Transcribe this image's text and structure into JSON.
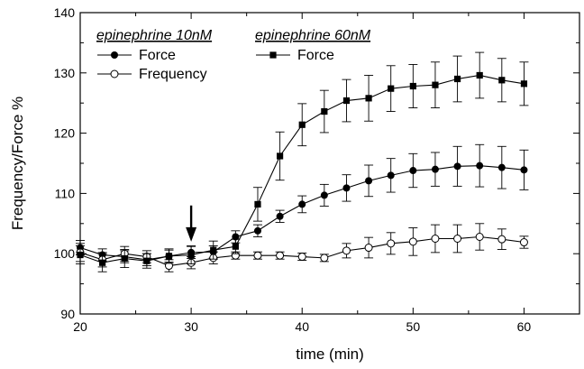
{
  "chart_data": {
    "type": "line",
    "xlabel": "time (min)",
    "ylabel": "Frequency/Force %",
    "xlim": [
      20,
      65
    ],
    "ylim": [
      90,
      140
    ],
    "xticks": [
      20,
      30,
      40,
      50,
      60
    ],
    "yticks": [
      90,
      100,
      110,
      120,
      130,
      140
    ],
    "grid": false,
    "legend_position": "top-left",
    "legend_groups": [
      {
        "heading": "epinephrine 10nM",
        "entries": [
          "Force",
          "Frequency"
        ]
      },
      {
        "heading": "epinephrine 60nM",
        "entries": [
          "Force"
        ]
      }
    ],
    "annotation": {
      "type": "arrow",
      "x": 30,
      "y_from": 108,
      "y_to": 102
    },
    "series": [
      {
        "name": "Force",
        "group": "epinephrine 10nM",
        "marker": "filled-circle",
        "x": [
          20,
          22,
          24,
          26,
          28,
          30,
          32,
          34,
          36,
          38,
          40,
          42,
          44,
          46,
          48,
          50,
          52,
          54,
          56,
          58,
          60
        ],
        "y": [
          101.0,
          99.8,
          99.5,
          99.0,
          99.6,
          100.2,
          100.3,
          102.8,
          103.8,
          106.2,
          108.2,
          109.7,
          110.9,
          112.1,
          113.0,
          113.8,
          114.0,
          114.5,
          114.6,
          114.3,
          113.9
        ],
        "err": [
          1.2,
          1.0,
          1.0,
          1.0,
          1.0,
          1.0,
          1.0,
          1.0,
          1.0,
          1.0,
          1.4,
          1.8,
          2.2,
          2.6,
          2.8,
          2.8,
          2.8,
          3.3,
          3.5,
          3.5,
          3.3
        ]
      },
      {
        "name": "Frequency",
        "group": "epinephrine 10nM",
        "marker": "open-circle",
        "x": [
          20,
          22,
          24,
          26,
          28,
          30,
          32,
          34,
          36,
          38,
          40,
          42,
          44,
          46,
          48,
          50,
          52,
          54,
          56,
          58,
          60
        ],
        "y": [
          100.2,
          99.0,
          100.0,
          99.5,
          98.0,
          98.5,
          99.3,
          99.7,
          99.7,
          99.7,
          99.5,
          99.3,
          100.5,
          101.0,
          101.7,
          102.0,
          102.5,
          102.5,
          102.8,
          102.4,
          101.9
        ],
        "err": [
          1.5,
          1.2,
          1.2,
          1.0,
          1.0,
          1.0,
          1.0,
          0.6,
          0.6,
          0.6,
          0.6,
          0.6,
          1.2,
          1.7,
          1.8,
          2.3,
          2.3,
          2.3,
          2.2,
          1.7,
          1.0
        ]
      },
      {
        "name": "Force",
        "group": "epinephrine 60nM",
        "marker": "filled-square",
        "x": [
          20,
          22,
          24,
          26,
          28,
          30,
          32,
          34,
          36,
          38,
          40,
          42,
          44,
          46,
          48,
          50,
          52,
          54,
          56,
          58,
          60
        ],
        "y": [
          99.8,
          98.5,
          99.2,
          98.8,
          99.6,
          99.8,
          100.6,
          101.2,
          108.2,
          116.2,
          121.4,
          123.6,
          125.4,
          125.8,
          127.4,
          127.8,
          128.0,
          129.0,
          129.6,
          128.8,
          128.2
        ],
        "err": [
          1.5,
          1.5,
          1.5,
          1.2,
          1.2,
          1.5,
          1.5,
          1.2,
          2.8,
          4.0,
          3.5,
          3.5,
          3.5,
          3.8,
          3.8,
          3.6,
          3.8,
          3.8,
          3.8,
          3.6,
          3.6
        ]
      }
    ]
  }
}
